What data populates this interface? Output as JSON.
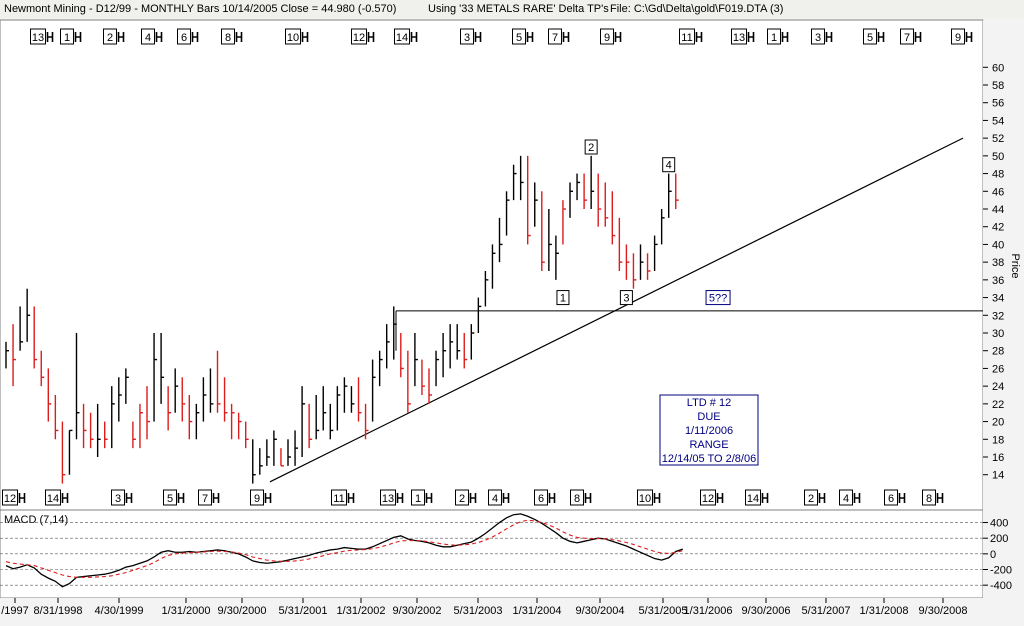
{
  "header": {
    "left": "Newmont Mining - D12/99  - MONTHLY Bars  10/14/2005 Close = 44.980 (-0.570)",
    "middle": "Using '33 METALS RARE' Delta TP's",
    "right": "File: C:\\Gd\\Delta\\gold\\F019.DTA (3)"
  },
  "colors": {
    "up": "#000000",
    "down": "#dd1c1c",
    "signal": "#dd1c1c",
    "macd": "#000000",
    "label_box": "#000080"
  },
  "chart_data": [
    {
      "type": "ohlc-bar",
      "y_axis": {
        "label": "Price",
        "ticks": [
          14,
          16,
          18,
          20,
          22,
          24,
          26,
          28,
          30,
          32,
          34,
          36,
          38,
          40,
          42,
          44,
          46,
          48,
          50,
          52,
          54,
          56,
          58,
          60
        ],
        "ylim": [
          12.5,
          61.5
        ]
      },
      "x_axis": {
        "tick_labels": [
          "/1997",
          "8/31/1998",
          "4/30/1999",
          "1/31/2000",
          "9/30/2000",
          "5/31/2001",
          "1/31/2002",
          "9/30/2002",
          "5/31/2003",
          "1/31/2004",
          "9/30/2004",
          "5/31/2005",
          "1/31/2006",
          "9/30/2006",
          "5/31/2007",
          "1/31/2008",
          "9/30/2008"
        ]
      },
      "bars_hl_close": [
        [
          29,
          26,
          28
        ],
        [
          31,
          24,
          27
        ],
        [
          33,
          28,
          29
        ],
        [
          35,
          29,
          32
        ],
        [
          33,
          26,
          27
        ],
        [
          28,
          24,
          25
        ],
        [
          26,
          20,
          22
        ],
        [
          23,
          18,
          19
        ],
        [
          20,
          13,
          14
        ],
        [
          19,
          14,
          19
        ],
        [
          30,
          18,
          21
        ],
        [
          22,
          17,
          19
        ],
        [
          21,
          17,
          18
        ],
        [
          22,
          16,
          18
        ],
        [
          20,
          17,
          18
        ],
        [
          24,
          17,
          22
        ],
        [
          25,
          20,
          23
        ],
        [
          26,
          22,
          25
        ],
        [
          20,
          17,
          18
        ],
        [
          22,
          17,
          21
        ],
        [
          24,
          18,
          20
        ],
        [
          30,
          20,
          27
        ],
        [
          30,
          22,
          25
        ],
        [
          24,
          19,
          21
        ],
        [
          26,
          21,
          24
        ],
        [
          25,
          20,
          22
        ],
        [
          23,
          18,
          20
        ],
        [
          22,
          18,
          21
        ],
        [
          25,
          20,
          23
        ],
        [
          26,
          21,
          22
        ],
        [
          28,
          21,
          22
        ],
        [
          25,
          20,
          21
        ],
        [
          22,
          18,
          21
        ],
        [
          21,
          18,
          20
        ],
        [
          20,
          17,
          18
        ],
        [
          18,
          13,
          14
        ],
        [
          17,
          14,
          15
        ],
        [
          18,
          15,
          16
        ],
        [
          19,
          15,
          18
        ],
        [
          17,
          15,
          15
        ],
        [
          18,
          15,
          16
        ],
        [
          19,
          15,
          17
        ],
        [
          24,
          16,
          22
        ],
        [
          22,
          17,
          18
        ],
        [
          23,
          18,
          19
        ],
        [
          24,
          19,
          21
        ],
        [
          22,
          18,
          19
        ],
        [
          24,
          19,
          23
        ],
        [
          25,
          21,
          24
        ],
        [
          24,
          21,
          22
        ],
        [
          25,
          20,
          21
        ],
        [
          22,
          18,
          19
        ],
        [
          27,
          20,
          25
        ],
        [
          28,
          24,
          27
        ],
        [
          31,
          26,
          29
        ],
        [
          33,
          27,
          31
        ],
        [
          30,
          25,
          26
        ],
        [
          28,
          21,
          22
        ],
        [
          30,
          24,
          27
        ],
        [
          27,
          23,
          24
        ],
        [
          26,
          22,
          23
        ],
        [
          28,
          24,
          27
        ],
        [
          30,
          25,
          28
        ],
        [
          31,
          26,
          29
        ],
        [
          31,
          27,
          28
        ],
        [
          30,
          26,
          27
        ],
        [
          31,
          27,
          30
        ],
        [
          34,
          30,
          33
        ],
        [
          37,
          33,
          36
        ],
        [
          40,
          35,
          39
        ],
        [
          43,
          38,
          40
        ],
        [
          46,
          41,
          45
        ],
        [
          49,
          45,
          48
        ],
        [
          50,
          45,
          47
        ],
        [
          50,
          40,
          41
        ],
        [
          47,
          42,
          45
        ],
        [
          46,
          37,
          38
        ],
        [
          44,
          37,
          40
        ],
        [
          41,
          36,
          39
        ],
        [
          45,
          40,
          44
        ],
        [
          47,
          43,
          46
        ],
        [
          48,
          45,
          47
        ],
        [
          48,
          44,
          45
        ],
        [
          50,
          44,
          46
        ],
        [
          48,
          42,
          44
        ],
        [
          47,
          42,
          43
        ],
        [
          46,
          40,
          41
        ],
        [
          43,
          37,
          38
        ],
        [
          40,
          36,
          38
        ],
        [
          39,
          35,
          36
        ],
        [
          40,
          36,
          38
        ],
        [
          39,
          36,
          37
        ],
        [
          41,
          37,
          40
        ],
        [
          44,
          40,
          43
        ],
        [
          48,
          43,
          46
        ],
        [
          48,
          44,
          45
        ]
      ],
      "bars_red_down": [
        1,
        4,
        5,
        6,
        7,
        8,
        11,
        12,
        14,
        18,
        19,
        20,
        23,
        25,
        26,
        30,
        31,
        32,
        33,
        34,
        39,
        43,
        50,
        51,
        56,
        57,
        59,
        60,
        65,
        74,
        76,
        79,
        82,
        84,
        85,
        86,
        87,
        88,
        89,
        91,
        95
      ],
      "trendline": {
        "from": [
          "2001-01",
          13.2
        ],
        "to": [
          "2009-02",
          52
        ]
      },
      "horizontal_line": {
        "y": 32.5
      },
      "wave_labels": [
        {
          "label": "1",
          "x_bar": 79,
          "y": 34
        },
        {
          "label": "2",
          "x_bar": 83,
          "y": 51
        },
        {
          "label": "3",
          "x_bar": 88,
          "y": 34
        },
        {
          "label": "4",
          "x_bar": 94,
          "y": 49
        },
        {
          "label": "5??",
          "x_bar": 101,
          "y": 34
        }
      ],
      "info_box": {
        "line1": "LTD # 12",
        "line2": "DUE",
        "line3": "1/11/2006",
        "line4": "RANGE",
        "line5": "12/14/05 TO 2/8/06"
      },
      "top_markers": [
        "13",
        "1",
        "2",
        "4",
        "6",
        "8",
        "10",
        "12",
        "14",
        "3",
        "5",
        "7",
        "9",
        "11",
        "13",
        "1",
        "3",
        "5",
        "7",
        "9"
      ],
      "bottom_markers": [
        "12",
        "14",
        "3",
        "5",
        "7",
        "9",
        "11",
        "13",
        "1",
        "2",
        "4",
        "6",
        "8",
        "10",
        "12",
        "14",
        "2",
        "4",
        "6",
        "8"
      ]
    },
    {
      "type": "line",
      "title": "MACD (7,14)",
      "y_ticks": [
        -400,
        -200,
        0,
        200,
        400
      ],
      "ylim": [
        -500,
        560
      ],
      "series": [
        {
          "values": [
            -150,
            -190,
            -170,
            -140,
            -180,
            -260,
            -310,
            -350,
            -420,
            -380,
            -300,
            -290,
            -280,
            -270,
            -260,
            -240,
            -210,
            -170,
            -150,
            -120,
            -90,
            -40,
            20,
            40,
            20,
            20,
            30,
            20,
            30,
            40,
            50,
            40,
            20,
            0,
            -40,
            -90,
            -110,
            -120,
            -110,
            -100,
            -80,
            -60,
            -40,
            -20,
            10,
            30,
            50,
            60,
            80,
            70,
            60,
            60,
            90,
            130,
            170,
            210,
            230,
            190,
            170,
            160,
            140,
            110,
            90,
            90,
            110,
            130,
            150,
            200,
            260,
            330,
            400,
            460,
            500,
            510,
            480,
            440,
            390,
            330,
            270,
            200,
            160,
            140,
            160,
            180,
            200,
            190,
            160,
            130,
            100,
            60,
            20,
            -20,
            -60,
            -80,
            -50,
            30,
            60
          ]
        },
        {
          "values": [
            -100,
            -120,
            -130,
            -140,
            -150,
            -180,
            -210,
            -240,
            -270,
            -290,
            -300,
            -300,
            -300,
            -295,
            -290,
            -280,
            -260,
            -240,
            -210,
            -180,
            -150,
            -110,
            -60,
            -20,
            0,
            10,
            15,
            20,
            25,
            30,
            35,
            30,
            25,
            10,
            -10,
            -40,
            -60,
            -80,
            -90,
            -95,
            -95,
            -90,
            -80,
            -65,
            -45,
            -25,
            0,
            15,
            35,
            45,
            50,
            55,
            65,
            85,
            110,
            140,
            165,
            170,
            170,
            165,
            155,
            140,
            125,
            115,
            110,
            115,
            125,
            145,
            175,
            215,
            265,
            320,
            370,
            410,
            430,
            420,
            400,
            370,
            330,
            280,
            240,
            210,
            200,
            195,
            195,
            190,
            180,
            165,
            145,
            120,
            90,
            60,
            30,
            10,
            5,
            20,
            40
          ]
        }
      ]
    }
  ]
}
